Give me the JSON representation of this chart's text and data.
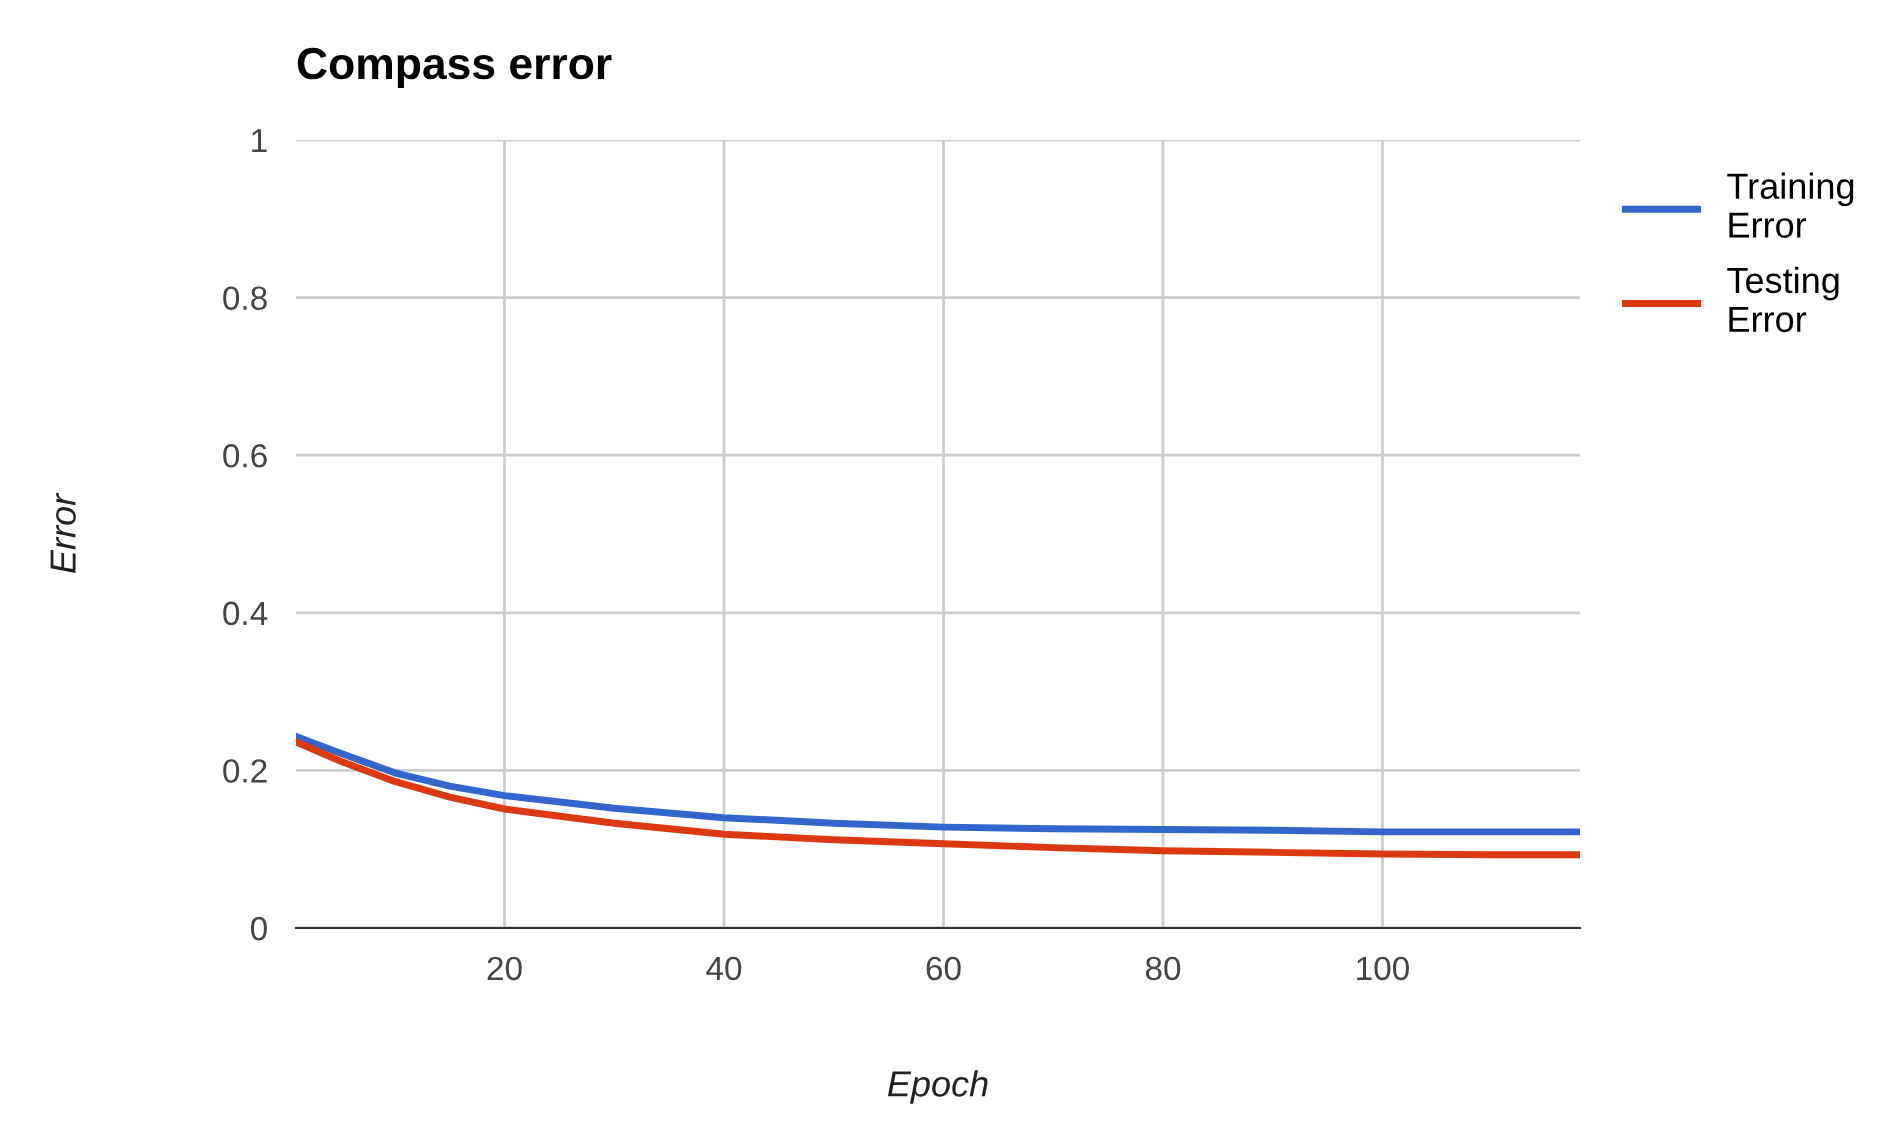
{
  "chart_data": {
    "type": "line",
    "title": "Compass error",
    "xlabel": "Epoch",
    "ylabel": "Error",
    "x": [
      1,
      5,
      10,
      15,
      20,
      30,
      40,
      50,
      60,
      70,
      80,
      90,
      100,
      110,
      118
    ],
    "series": [
      {
        "name": "Training Error",
        "color": "#3366cc",
        "values": [
          0.243,
          0.222,
          0.197,
          0.18,
          0.168,
          0.152,
          0.14,
          0.133,
          0.128,
          0.126,
          0.125,
          0.124,
          0.122,
          0.122,
          0.122
        ]
      },
      {
        "name": "Testing Error",
        "color": "#dc3912",
        "values": [
          0.236,
          0.212,
          0.186,
          0.166,
          0.151,
          0.133,
          0.119,
          0.112,
          0.107,
          0.102,
          0.098,
          0.096,
          0.094,
          0.093,
          0.093
        ]
      }
    ],
    "xlim": [
      1,
      118
    ],
    "xticks": [
      20,
      40,
      60,
      80,
      100
    ],
    "ylim": [
      0,
      1
    ],
    "yticks": [
      0,
      0.2,
      0.4,
      0.6,
      0.8,
      1
    ],
    "grid": true,
    "legend": "right",
    "marker": "none",
    "line_style": "solid"
  }
}
